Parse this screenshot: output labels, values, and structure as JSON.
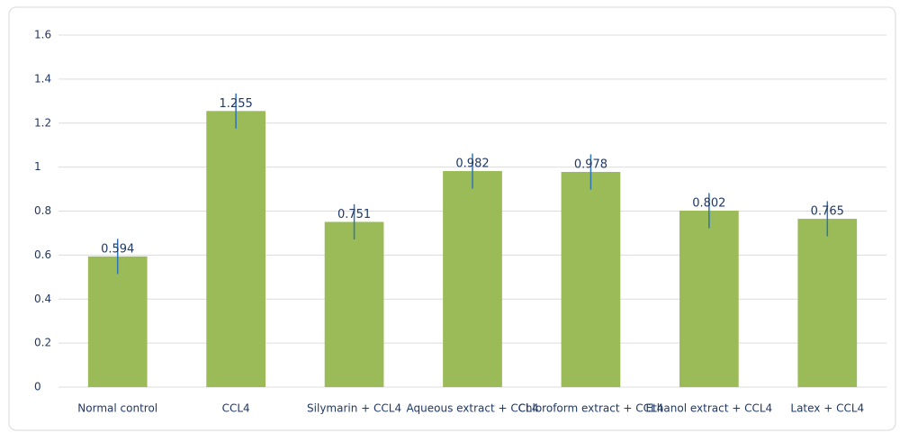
{
  "chart_data": {
    "type": "bar",
    "categories": [
      "Normal control",
      "CCL4",
      "Silymarin +  CCL4",
      "Aqueous extract + CCL4",
      "Chloroform extract + CCL4",
      "Ethanol extract +  CCL4",
      "Latex +  CCL4"
    ],
    "values": [
      0.594,
      1.255,
      0.751,
      0.982,
      0.978,
      0.802,
      0.765
    ],
    "errors": [
      0.08,
      0.08,
      0.08,
      0.08,
      0.08,
      0.08,
      0.08
    ],
    "color": "#9bbb59",
    "error_color": "#2e75b6",
    "ylim": [
      0,
      1.6
    ],
    "yticks": [
      0,
      0.2,
      0.4,
      0.6,
      0.8,
      1,
      1.2,
      1.4,
      1.6
    ],
    "grid": true
  }
}
